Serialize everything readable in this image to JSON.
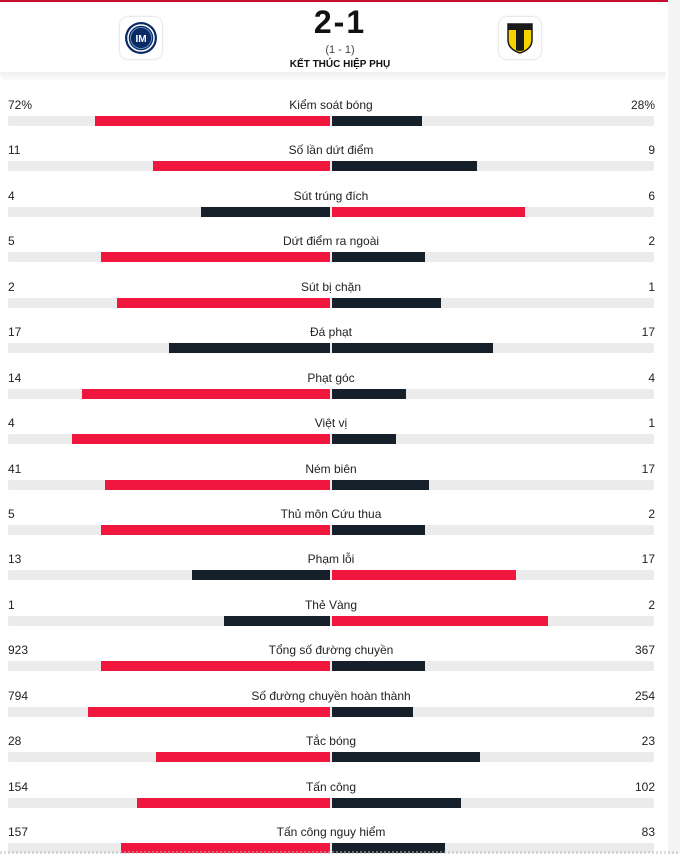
{
  "match": {
    "score": "2-1",
    "halftime": "(1 - 1)",
    "status": "KẾT THÚC HIỆP PHỤ",
    "home_logo_icon": "inter-milan-crest-icon",
    "away_logo_icon": "parma-crest-icon"
  },
  "colors": {
    "home": "#f0163d",
    "away": "#15202b",
    "track": "#ebebeb"
  },
  "stats": [
    {
      "name": "Kiểm soát bóng",
      "home": "72%",
      "away": "28%",
      "home_len": 0.73,
      "away_len": 0.28,
      "home_color": "red",
      "away_color": "navy"
    },
    {
      "name": "Số lần dứt điểm",
      "home": "11",
      "away": "9",
      "home_len": 0.55,
      "away_len": 0.45,
      "home_color": "red",
      "away_color": "navy"
    },
    {
      "name": "Sút trúng đích",
      "home": "4",
      "away": "6",
      "home_len": 0.4,
      "away_len": 0.6,
      "home_color": "navy",
      "away_color": "red"
    },
    {
      "name": "Dứt điểm ra ngoài",
      "home": "5",
      "away": "2",
      "home_len": 0.71,
      "away_len": 0.29,
      "home_color": "red",
      "away_color": "navy"
    },
    {
      "name": "Sút bị chặn",
      "home": "2",
      "away": "1",
      "home_len": 0.66,
      "away_len": 0.34,
      "home_color": "red",
      "away_color": "navy"
    },
    {
      "name": "Đá phạt",
      "home": "17",
      "away": "17",
      "home_len": 0.5,
      "away_len": 0.5,
      "home_color": "navy",
      "away_color": "navy"
    },
    {
      "name": "Phạt góc",
      "home": "14",
      "away": "4",
      "home_len": 0.77,
      "away_len": 0.23,
      "home_color": "red",
      "away_color": "navy"
    },
    {
      "name": "Việt vị",
      "home": "4",
      "away": "1",
      "home_len": 0.8,
      "away_len": 0.2,
      "home_color": "red",
      "away_color": "navy"
    },
    {
      "name": "Ném biên",
      "home": "41",
      "away": "17",
      "home_len": 0.7,
      "away_len": 0.3,
      "home_color": "red",
      "away_color": "navy"
    },
    {
      "name": "Thủ môn Cứu thua",
      "home": "5",
      "away": "2",
      "home_len": 0.71,
      "away_len": 0.29,
      "home_color": "red",
      "away_color": "navy"
    },
    {
      "name": "Phạm lỗi",
      "home": "13",
      "away": "17",
      "home_len": 0.43,
      "away_len": 0.57,
      "home_color": "navy",
      "away_color": "red"
    },
    {
      "name": "Thẻ Vàng",
      "home": "1",
      "away": "2",
      "home_len": 0.33,
      "away_len": 0.67,
      "home_color": "navy",
      "away_color": "red"
    },
    {
      "name": "Tổng số đường chuyền",
      "home": "923",
      "away": "367",
      "home_len": 0.71,
      "away_len": 0.29,
      "home_color": "red",
      "away_color": "navy"
    },
    {
      "name": "Số đường chuyền hoàn thành",
      "home": "794",
      "away": "254",
      "home_len": 0.75,
      "away_len": 0.25,
      "home_color": "red",
      "away_color": "navy"
    },
    {
      "name": "Tắc bóng",
      "home": "28",
      "away": "23",
      "home_len": 0.54,
      "away_len": 0.46,
      "home_color": "red",
      "away_color": "navy"
    },
    {
      "name": "Tấn công",
      "home": "154",
      "away": "102",
      "home_len": 0.6,
      "away_len": 0.4,
      "home_color": "red",
      "away_color": "navy"
    },
    {
      "name": "Tấn công nguy hiểm",
      "home": "157",
      "away": "83",
      "home_len": 0.65,
      "away_len": 0.35,
      "home_color": "red",
      "away_color": "navy"
    }
  ]
}
